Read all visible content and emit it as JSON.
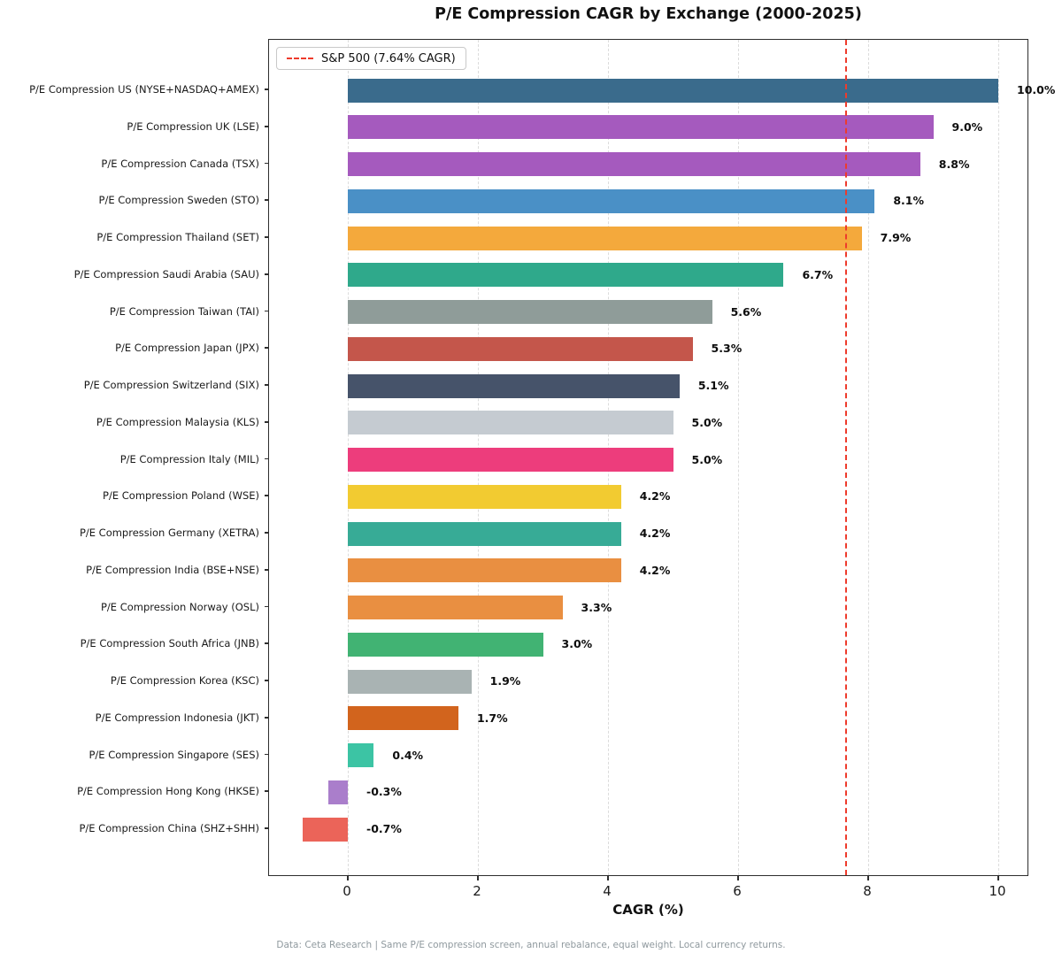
{
  "chart_data": {
    "type": "bar",
    "orientation": "horizontal",
    "title": "P/E Compression CAGR by Exchange (2000-2025)",
    "xlabel": "CAGR (%)",
    "xlim": [
      -1.21,
      10.48
    ],
    "xticks": [
      0,
      2,
      4,
      6,
      8,
      10
    ],
    "grid": "vertical-dashed",
    "legend_position": "upper left",
    "legend_label": "S&P 500 (7.64% CAGR)",
    "reference_line": {
      "value": 7.64,
      "label": "S&P 500 (7.64% CAGR)",
      "color": "#ee3b2c",
      "style": "dashed"
    },
    "footnote": "Data: Ceta Research | Same P/E compression screen, annual rebalance, equal weight. Local currency returns.",
    "bars": [
      {
        "label": "P/E Compression US (NYSE+NASDAQ+AMEX)",
        "value": 10.0,
        "display": "10.0%",
        "color": "#3a6b8c"
      },
      {
        "label": "P/E Compression UK (LSE)",
        "value": 9.0,
        "display": "9.0%",
        "color": "#a55abe"
      },
      {
        "label": "P/E Compression Canada (TSX)",
        "value": 8.8,
        "display": "8.8%",
        "color": "#a55abe"
      },
      {
        "label": "P/E Compression Sweden (STO)",
        "value": 8.1,
        "display": "8.1%",
        "color": "#4a90c6"
      },
      {
        "label": "P/E Compression Thailand (SET)",
        "value": 7.9,
        "display": "7.9%",
        "color": "#f4a93c"
      },
      {
        "label": "P/E Compression Saudi Arabia (SAU)",
        "value": 6.7,
        "display": "6.7%",
        "color": "#2fa98b"
      },
      {
        "label": "P/E Compression Taiwan (TAI)",
        "value": 5.6,
        "display": "5.6%",
        "color": "#8f9c99"
      },
      {
        "label": "P/E Compression Japan (JPX)",
        "value": 5.3,
        "display": "5.3%",
        "color": "#c4564b"
      },
      {
        "label": "P/E Compression Switzerland (SIX)",
        "value": 5.1,
        "display": "5.1%",
        "color": "#46536a"
      },
      {
        "label": "P/E Compression Malaysia (KLS)",
        "value": 5.0,
        "display": "5.0%",
        "color": "#c5cbd1"
      },
      {
        "label": "P/E Compression Italy (MIL)",
        "value": 5.0,
        "display": "5.0%",
        "color": "#ed3d7c"
      },
      {
        "label": "P/E Compression Poland (WSE)",
        "value": 4.2,
        "display": "4.2%",
        "color": "#f2cb31"
      },
      {
        "label": "P/E Compression Germany (XETRA)",
        "value": 4.2,
        "display": "4.2%",
        "color": "#37ab96"
      },
      {
        "label": "P/E Compression India (BSE+NSE)",
        "value": 4.2,
        "display": "4.2%",
        "color": "#e98f41"
      },
      {
        "label": "P/E Compression Norway (OSL)",
        "value": 3.3,
        "display": "3.3%",
        "color": "#e98f41"
      },
      {
        "label": "P/E Compression South Africa (JNB)",
        "value": 3.0,
        "display": "3.0%",
        "color": "#41b373"
      },
      {
        "label": "P/E Compression Korea (KSC)",
        "value": 1.9,
        "display": "1.9%",
        "color": "#a9b3b3"
      },
      {
        "label": "P/E Compression Indonesia (JKT)",
        "value": 1.7,
        "display": "1.7%",
        "color": "#d2641d"
      },
      {
        "label": "P/E Compression Singapore (SES)",
        "value": 0.4,
        "display": "0.4%",
        "color": "#3cc4a4"
      },
      {
        "label": "P/E Compression Hong Kong (HKSE)",
        "value": -0.3,
        "display": "-0.3%",
        "color": "#aa7ecb"
      },
      {
        "label": "P/E Compression China (SHZ+SHH)",
        "value": -0.7,
        "display": "-0.7%",
        "color": "#eb6459"
      }
    ]
  }
}
